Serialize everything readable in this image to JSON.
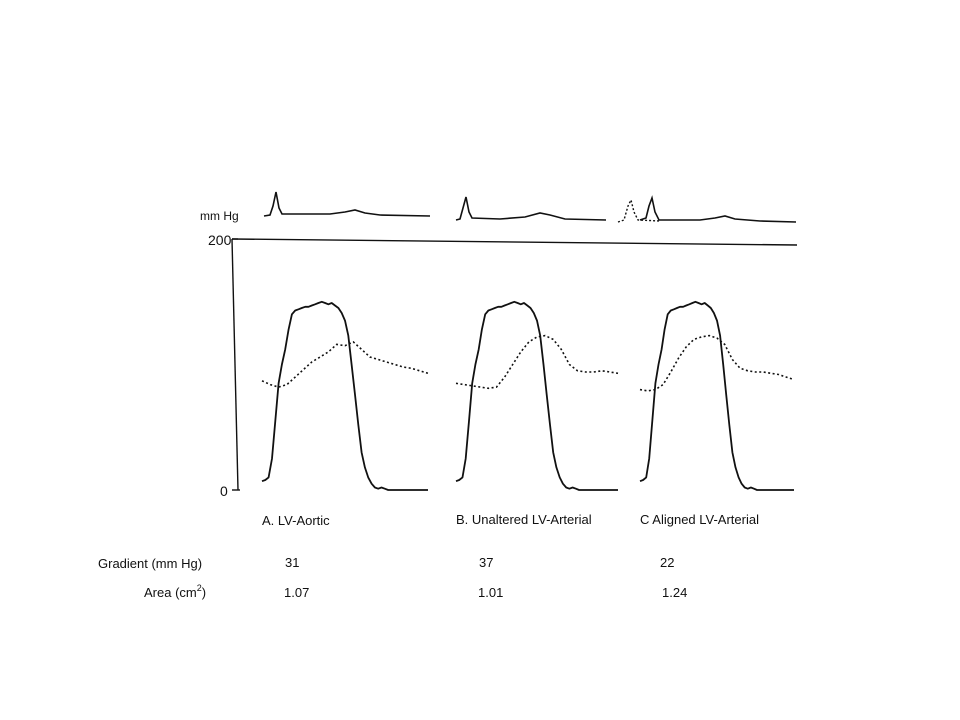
{
  "chart_data": {
    "type": "line",
    "ecg_unit": "mm Hg",
    "y_ticks": [
      "200",
      "0"
    ],
    "ylim": [
      0,
      200
    ],
    "panels": [
      {
        "label": "A. LV-Aortic",
        "gradient": "31",
        "area": "1.07",
        "series": [
          {
            "style": "solid",
            "x": [
              0,
              2,
              4,
              6,
              8,
              10,
              12,
              14,
              16,
              18,
              20,
              22,
              24,
              26,
              28,
              30,
              32,
              34,
              36,
              38,
              40,
              42,
              44,
              46,
              48,
              50,
              52,
              54,
              56,
              58,
              60,
              62,
              64,
              66,
              68,
              70,
              72,
              74,
              76,
              78,
              80,
              82,
              84,
              86,
              88,
              90,
              92,
              94,
              96,
              98,
              100
            ],
            "y": [
              7,
              8,
              10,
              25,
              55,
              85,
              100,
              112,
              128,
              140,
              143,
              144,
              145,
              146,
              146,
              147,
              148,
              149,
              150,
              149,
              148,
              149,
              147,
              145,
              141,
              135,
              123,
              100,
              76,
              52,
              30,
              18,
              10,
              5,
              2,
              1,
              2,
              1,
              0,
              0,
              0,
              0,
              0,
              0,
              0,
              0,
              0,
              0,
              0,
              0,
              0
            ]
          },
          {
            "style": "dotted",
            "x": [
              0,
              5,
              10,
              15,
              20,
              25,
              30,
              35,
              40,
              45,
              50,
              55,
              60,
              65,
              70,
              75,
              80,
              85,
              90,
              95,
              100
            ],
            "y": [
              87,
              84,
              82,
              84,
              90,
              96,
              102,
              106,
              110,
              116,
              115,
              118,
              112,
              106,
              104,
              102,
              100,
              98,
              97,
              95,
              93
            ]
          }
        ]
      },
      {
        "label": "B. Unaltered LV-Arterial",
        "gradient": "37",
        "area": "1.01",
        "series": [
          {
            "style": "solid",
            "x": [
              0,
              2,
              4,
              6,
              8,
              10,
              12,
              14,
              16,
              18,
              20,
              22,
              24,
              26,
              28,
              30,
              32,
              34,
              36,
              38,
              40,
              42,
              44,
              46,
              48,
              50,
              52,
              54,
              56,
              58,
              60,
              62,
              64,
              66,
              68,
              70,
              72,
              74,
              76,
              78,
              80,
              82,
              84,
              86,
              88,
              90,
              92,
              94,
              96,
              98,
              100
            ],
            "y": [
              7,
              8,
              10,
              25,
              55,
              85,
              100,
              112,
              128,
              140,
              143,
              144,
              145,
              146,
              146,
              147,
              148,
              149,
              150,
              149,
              148,
              149,
              147,
              145,
              141,
              135,
              123,
              100,
              76,
              52,
              30,
              18,
              10,
              5,
              2,
              1,
              2,
              1,
              0,
              0,
              0,
              0,
              0,
              0,
              0,
              0,
              0,
              0,
              0,
              0,
              0
            ]
          },
          {
            "style": "dotted",
            "x": [
              0,
              5,
              10,
              15,
              20,
              25,
              30,
              35,
              40,
              45,
              50,
              55,
              60,
              65,
              70,
              75,
              80,
              85,
              90,
              95,
              100
            ],
            "y": [
              85,
              84,
              83,
              82,
              81,
              82,
              90,
              100,
              110,
              118,
              122,
              123,
              120,
              112,
              100,
              95,
              94,
              94,
              95,
              94,
              93
            ]
          }
        ]
      },
      {
        "label": "C  Aligned LV-Arterial",
        "gradient": "22",
        "area": "1.24",
        "series": [
          {
            "style": "solid",
            "x": [
              0,
              2,
              4,
              6,
              8,
              10,
              12,
              14,
              16,
              18,
              20,
              22,
              24,
              26,
              28,
              30,
              32,
              34,
              36,
              38,
              40,
              42,
              44,
              46,
              48,
              50,
              52,
              54,
              56,
              58,
              60,
              62,
              64,
              66,
              68,
              70,
              72,
              74,
              76,
              78,
              80,
              82,
              84,
              86,
              88,
              90,
              92,
              94,
              96,
              98,
              100
            ],
            "y": [
              7,
              8,
              10,
              25,
              55,
              85,
              100,
              112,
              128,
              140,
              143,
              144,
              145,
              146,
              146,
              147,
              148,
              149,
              150,
              149,
              148,
              149,
              147,
              145,
              141,
              135,
              123,
              100,
              76,
              52,
              30,
              18,
              10,
              5,
              2,
              1,
              2,
              1,
              0,
              0,
              0,
              0,
              0,
              0,
              0,
              0,
              0,
              0,
              0,
              0,
              0
            ]
          },
          {
            "style": "dotted",
            "x": [
              0,
              5,
              10,
              15,
              20,
              25,
              30,
              35,
              40,
              45,
              50,
              55,
              60,
              65,
              70,
              75,
              80,
              85,
              90,
              95,
              100
            ],
            "y": [
              80,
              79,
              80,
              84,
              94,
              105,
              114,
              120,
              122,
              123,
              121,
              116,
              104,
              97,
              95,
              94,
              94,
              93,
              92,
              90,
              88
            ]
          }
        ]
      }
    ],
    "row_labels": {
      "gradient": "Gradient (mm Hg)",
      "area_prefix": "Area (cm",
      "area_sup": "2",
      "area_suffix": ")"
    }
  }
}
